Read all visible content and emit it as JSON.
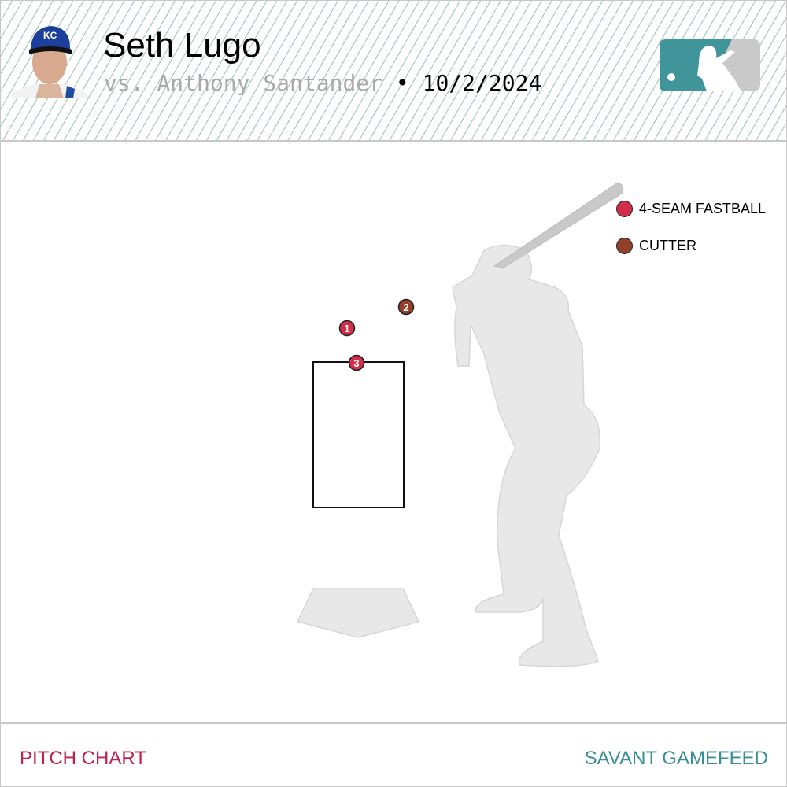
{
  "header": {
    "pitcher": "Seth Lugo",
    "vs_prefix": "vs. Anthony Santander",
    "separator": "•",
    "date": "10/2/2024",
    "team_cap_text": "KC"
  },
  "legend": [
    {
      "label": "4-SEAM FASTBALL",
      "color": "#d22e4c"
    },
    {
      "label": "CUTTER",
      "color": "#933f2c"
    }
  ],
  "pitches": [
    {
      "number": "1",
      "type": "4-SEAM FASTBALL",
      "color": "#d22e4c"
    },
    {
      "number": "2",
      "type": "CUTTER",
      "color": "#933f2c"
    },
    {
      "number": "3",
      "type": "4-SEAM FASTBALL",
      "color": "#d22e4c"
    }
  ],
  "footer": {
    "left": "PITCH CHART",
    "right": "SAVANT GAMEFEED"
  }
}
